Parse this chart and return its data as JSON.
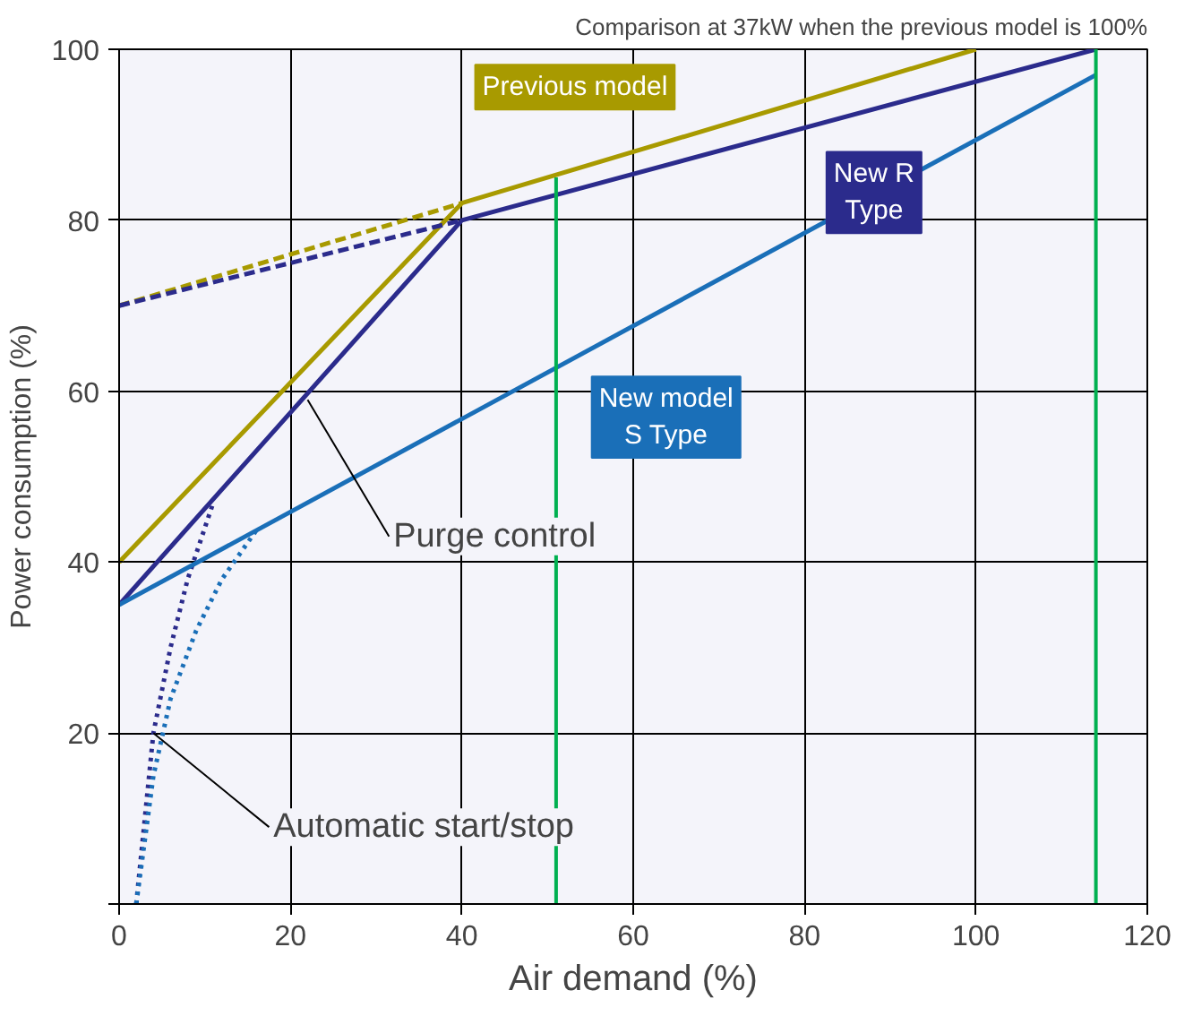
{
  "chart_data": {
    "type": "line",
    "xlabel": "Air demand (%)",
    "ylabel": "Power consumption (%)",
    "xlim": [
      0,
      120
    ],
    "ylim": [
      0,
      100
    ],
    "xticks": [
      0,
      20,
      40,
      60,
      80,
      100,
      120
    ],
    "yticks": [
      {
        "value": 0,
        "label": null
      },
      20,
      40,
      60,
      80,
      100
    ],
    "grid": true,
    "series": [
      {
        "name": "Previous model",
        "color": "#a89a00",
        "x": [
          0,
          40,
          100
        ],
        "values": [
          40,
          82,
          100
        ],
        "line_style": "solid"
      },
      {
        "color": "#a89a00",
        "x": [
          0,
          40
        ],
        "values": [
          70,
          82
        ],
        "line_style": "dashed"
      },
      {
        "name": "New R\nType",
        "color": "#2b2b8c",
        "x": [
          0,
          40,
          114
        ],
        "values": [
          35,
          80,
          100
        ],
        "line_style": "solid"
      },
      {
        "color": "#2b2b8c",
        "x": [
          0,
          40
        ],
        "values": [
          70,
          80
        ],
        "line_style": "dashed"
      },
      {
        "color": "#2b2b8c",
        "x": [
          2,
          3,
          4,
          6,
          8,
          11
        ],
        "values": [
          0,
          10,
          20,
          30,
          38,
          47
        ],
        "line_style": "dotted"
      },
      {
        "name": "New model\nS Type",
        "color": "#1a6fb8",
        "x": [
          0,
          114
        ],
        "values": [
          35,
          97
        ],
        "line_style": "solid"
      },
      {
        "color": "#1a6fb8",
        "x": [
          2,
          4,
          6,
          9,
          12,
          16
        ],
        "values": [
          0,
          15,
          24,
          32,
          38,
          43.7
        ],
        "line_style": "dotted"
      },
      {
        "color": "#00b050",
        "x": [
          51,
          51
        ],
        "values": [
          0,
          85
        ],
        "line_style": "solid"
      },
      {
        "color": "#00b050",
        "x": [
          114,
          114
        ],
        "values": [
          0,
          100
        ],
        "line_style": "solid"
      }
    ],
    "annotations": [
      "Comparison at 37kW when the previous model is 100%",
      {
        "text": "Purge control",
        "x": 22,
        "y": 59
      },
      {
        "text": "Automatic start/stop",
        "x": 4,
        "y": 20
      }
    ]
  }
}
